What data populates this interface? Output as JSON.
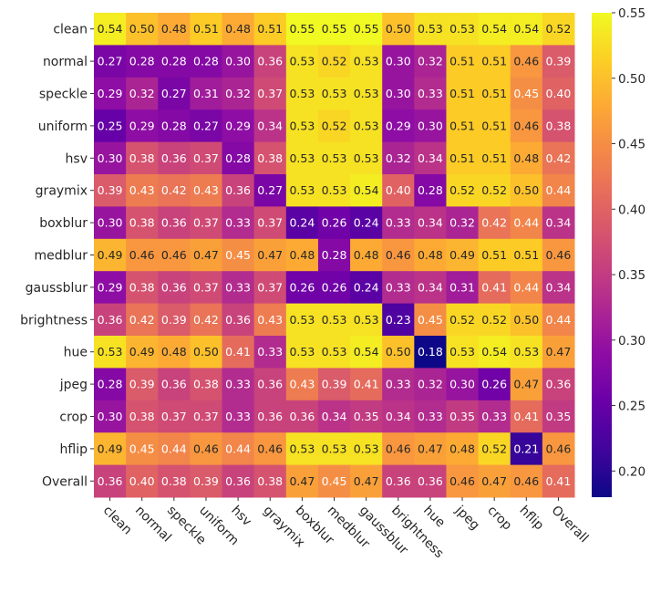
{
  "chart_data": {
    "type": "heatmap",
    "title": "",
    "xlabel": "",
    "ylabel": "",
    "colormap": "plasma",
    "vmin": 0.18,
    "vmax": 0.55,
    "colorbar": {
      "ticks": [
        "0.20",
        "0.25",
        "0.30",
        "0.35",
        "0.40",
        "0.45",
        "0.50",
        "0.55"
      ],
      "values": [
        0.2,
        0.25,
        0.3,
        0.35,
        0.4,
        0.45,
        0.5,
        0.55
      ],
      "placement": "right"
    },
    "x_labels": [
      "clean",
      "normal",
      "speckle",
      "uniform",
      "hsv",
      "graymix",
      "boxblur",
      "medblur",
      "gaussblur",
      "brightness",
      "hue",
      "jpeg",
      "crop",
      "hflip",
      "Overall"
    ],
    "y_labels": [
      "clean",
      "normal",
      "speckle",
      "uniform",
      "hsv",
      "graymix",
      "boxblur",
      "medblur",
      "gaussblur",
      "brightness",
      "hue",
      "jpeg",
      "crop",
      "hflip",
      "Overall"
    ],
    "values": [
      [
        0.54,
        0.5,
        0.48,
        0.51,
        0.48,
        0.51,
        0.55,
        0.55,
        0.55,
        0.5,
        0.53,
        0.53,
        0.54,
        0.54,
        0.52
      ],
      [
        0.27,
        0.28,
        0.28,
        0.28,
        0.3,
        0.36,
        0.53,
        0.52,
        0.53,
        0.3,
        0.32,
        0.51,
        0.51,
        0.46,
        0.39
      ],
      [
        0.29,
        0.32,
        0.27,
        0.31,
        0.32,
        0.37,
        0.53,
        0.53,
        0.53,
        0.3,
        0.33,
        0.51,
        0.51,
        0.45,
        0.4
      ],
      [
        0.25,
        0.29,
        0.28,
        0.27,
        0.29,
        0.34,
        0.53,
        0.52,
        0.53,
        0.29,
        0.3,
        0.51,
        0.51,
        0.46,
        0.38
      ],
      [
        0.3,
        0.38,
        0.36,
        0.37,
        0.28,
        0.38,
        0.53,
        0.53,
        0.53,
        0.32,
        0.34,
        0.51,
        0.51,
        0.48,
        0.42
      ],
      [
        0.39,
        0.43,
        0.42,
        0.43,
        0.36,
        0.27,
        0.53,
        0.53,
        0.54,
        0.4,
        0.28,
        0.52,
        0.52,
        0.5,
        0.44
      ],
      [
        0.3,
        0.38,
        0.36,
        0.37,
        0.33,
        0.37,
        0.24,
        0.26,
        0.24,
        0.33,
        0.34,
        0.32,
        0.42,
        0.44,
        0.34
      ],
      [
        0.49,
        0.46,
        0.46,
        0.47,
        0.45,
        0.47,
        0.48,
        0.28,
        0.48,
        0.46,
        0.48,
        0.49,
        0.51,
        0.51,
        0.46
      ],
      [
        0.29,
        0.38,
        0.36,
        0.37,
        0.33,
        0.37,
        0.26,
        0.26,
        0.24,
        0.33,
        0.34,
        0.31,
        0.41,
        0.44,
        0.34
      ],
      [
        0.36,
        0.42,
        0.39,
        0.42,
        0.36,
        0.43,
        0.53,
        0.53,
        0.53,
        0.23,
        0.45,
        0.52,
        0.52,
        0.5,
        0.44
      ],
      [
        0.53,
        0.49,
        0.48,
        0.5,
        0.41,
        0.33,
        0.53,
        0.53,
        0.54,
        0.5,
        0.18,
        0.53,
        0.54,
        0.53,
        0.47
      ],
      [
        0.28,
        0.39,
        0.36,
        0.38,
        0.33,
        0.36,
        0.43,
        0.39,
        0.41,
        0.33,
        0.32,
        0.3,
        0.26,
        0.47,
        0.36
      ],
      [
        0.3,
        0.38,
        0.37,
        0.37,
        0.33,
        0.36,
        0.36,
        0.34,
        0.35,
        0.34,
        0.33,
        0.35,
        0.33,
        0.41,
        0.35
      ],
      [
        0.49,
        0.45,
        0.44,
        0.46,
        0.44,
        0.46,
        0.53,
        0.53,
        0.53,
        0.46,
        0.47,
        0.48,
        0.52,
        0.21,
        0.46
      ],
      [
        0.36,
        0.4,
        0.38,
        0.39,
        0.36,
        0.38,
        0.47,
        0.45,
        0.47,
        0.36,
        0.36,
        0.46,
        0.47,
        0.46,
        0.41
      ]
    ]
  }
}
